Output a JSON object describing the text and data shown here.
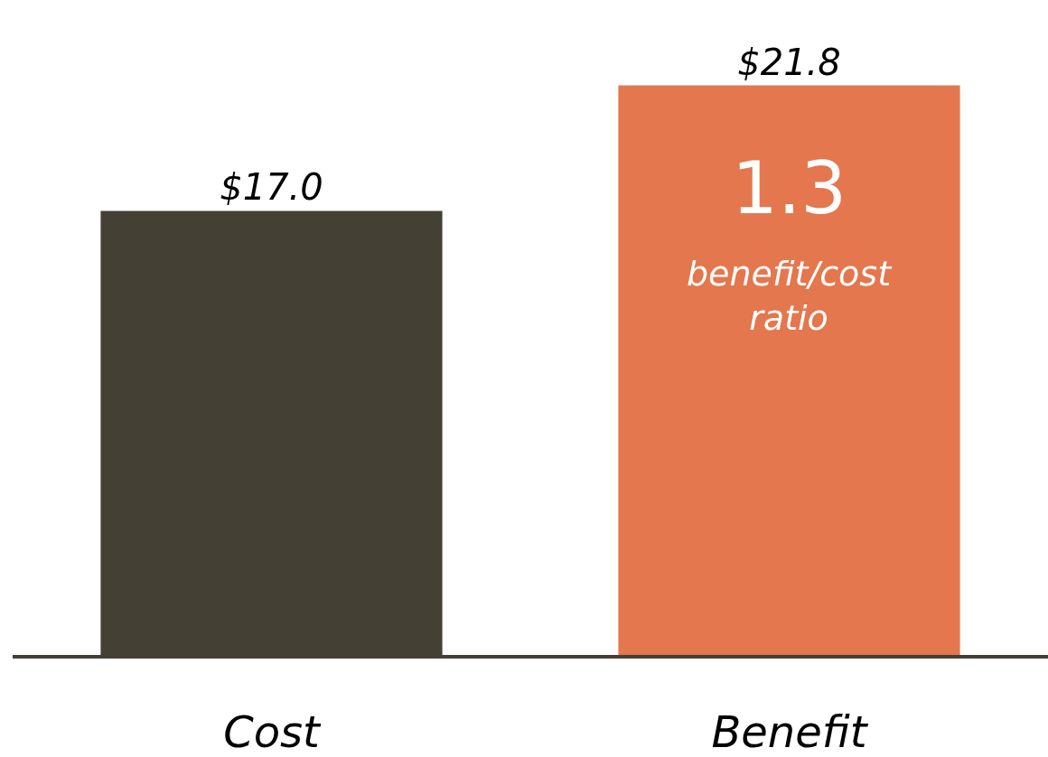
{
  "chart_data": {
    "type": "bar",
    "categories": [
      "Cost",
      "Benefit"
    ],
    "values": [
      17.0,
      21.8
    ],
    "colors": [
      "#454034",
      "#e4774e"
    ],
    "value_labels": [
      "$17.0",
      "$21.8"
    ],
    "annotations": [
      "1.3",
      "benefit/cost ratio"
    ]
  }
}
